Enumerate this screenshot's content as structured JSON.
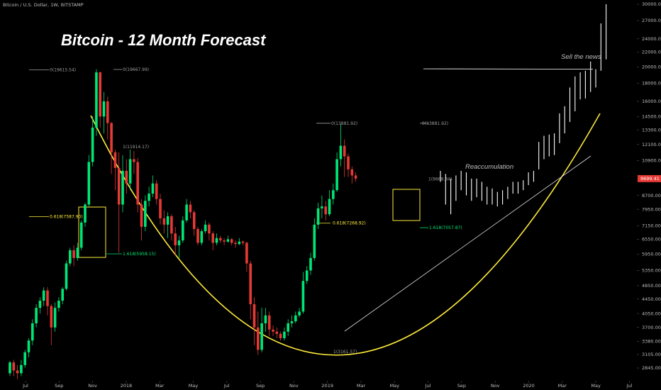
{
  "header": "Bitcoin / U.S. Dollar, 1W, BITSTAMP",
  "chart_data": {
    "type": "candlestick",
    "title": "Bitcoin - 12 Month Forecast",
    "subtitle": "Bitcoin / U.S. Dollar, 1W, BITSTAMP",
    "y_ticks": [
      "30000.00",
      "27000.00",
      "24000.00",
      "22000.00",
      "20000.00",
      "18000.00",
      "16000.00",
      "14500.00",
      "13300.00",
      "12100.00",
      "10900.00",
      "8700.00",
      "7950.00",
      "7150.00",
      "6550.00",
      "5950.00",
      "5350.00",
      "4850.00",
      "4450.00",
      "4050.00",
      "3700.00",
      "3380.00",
      "3105.00",
      "2845.00"
    ],
    "x_ticks": [
      "Jul",
      "Sep",
      "Nov",
      "2018",
      "Mar",
      "May",
      "Jul",
      "Sep",
      "Nov",
      "2019",
      "Mar",
      "May",
      "Jul",
      "Sep",
      "Nov",
      "2020",
      "Mar",
      "May",
      "Jul"
    ],
    "last_price": "9699.41",
    "last_price_color": "#e53935",
    "up_color": "#00e676",
    "down_color": "#e53935",
    "projection_color": "#ffffff",
    "curve_color": "#ffeb3b",
    "candles": [
      [
        2750,
        2950,
        2700,
        2980
      ],
      [
        2950,
        2800,
        2700,
        3000
      ],
      [
        2800,
        2750,
        2650,
        2900
      ],
      [
        2750,
        2900,
        2700,
        3000
      ],
      [
        2900,
        3150,
        2850,
        3200
      ],
      [
        3150,
        3400,
        3050,
        3450
      ],
      [
        3400,
        3800,
        3300,
        3900
      ],
      [
        3800,
        4200,
        3700,
        4300
      ],
      [
        4200,
        4400,
        4050,
        4500
      ],
      [
        4400,
        4700,
        4250,
        4800
      ],
      [
        4700,
        4250,
        4000,
        4800
      ],
      [
        4250,
        3700,
        3300,
        4300
      ],
      [
        3700,
        4200,
        3600,
        4350
      ],
      [
        4200,
        4400,
        4100,
        4500
      ],
      [
        4400,
        4750,
        4300,
        4800
      ],
      [
        4750,
        5600,
        4700,
        5700
      ],
      [
        5600,
        6100,
        5500,
        6200
      ],
      [
        6100,
        5800,
        5500,
        6300
      ],
      [
        5800,
        6200,
        5700,
        6400
      ],
      [
        6200,
        7300,
        6100,
        7400
      ],
      [
        7300,
        8200,
        7100,
        8300
      ],
      [
        8200,
        10800,
        8100,
        11300
      ],
      [
        10800,
        13500,
        10500,
        14500
      ],
      [
        13500,
        19300,
        12800,
        19700
      ],
      [
        19300,
        14500,
        13500,
        19400
      ],
      [
        14500,
        16000,
        13000,
        17000
      ],
      [
        16000,
        13900,
        12500,
        16500
      ],
      [
        13900,
        11500,
        10000,
        14000
      ],
      [
        11500,
        10400,
        9000,
        11700
      ],
      [
        10400,
        8200,
        6000,
        11500
      ],
      [
        8200,
        10200,
        7800,
        11300
      ],
      [
        10200,
        9400,
        8800,
        11000
      ],
      [
        9400,
        11000,
        9000,
        11700
      ],
      [
        11000,
        10800,
        10000,
        11600
      ],
      [
        10800,
        8200,
        7800,
        11100
      ],
      [
        8200,
        7100,
        6500,
        8500
      ],
      [
        7100,
        8400,
        6900,
        8700
      ],
      [
        8400,
        8800,
        8100,
        9200
      ],
      [
        8800,
        9400,
        8600,
        9900
      ],
      [
        9400,
        8500,
        8200,
        9600
      ],
      [
        8500,
        7500,
        7200,
        8800
      ],
      [
        7500,
        7200,
        6800,
        7900
      ],
      [
        7200,
        7600,
        6600,
        7800
      ],
      [
        7600,
        6800,
        6500,
        7700
      ],
      [
        6800,
        6300,
        5900,
        7100
      ],
      [
        6300,
        6500,
        5800,
        6700
      ],
      [
        6500,
        7400,
        6400,
        7600
      ],
      [
        7400,
        8200,
        7300,
        8500
      ],
      [
        8200,
        7800,
        7500,
        8400
      ],
      [
        7800,
        7000,
        6700,
        7900
      ],
      [
        7000,
        6400,
        6300,
        7100
      ],
      [
        6400,
        6900,
        6300,
        7000
      ],
      [
        6900,
        7200,
        6800,
        7400
      ],
      [
        7200,
        6800,
        6500,
        7300
      ],
      [
        6800,
        6400,
        6100,
        6900
      ],
      [
        6400,
        6600,
        6300,
        6800
      ],
      [
        6600,
        6500,
        6400,
        6700
      ],
      [
        6500,
        6450,
        6300,
        6600
      ],
      [
        6450,
        6550,
        6400,
        6700
      ],
      [
        6550,
        6400,
        6300,
        6600
      ],
      [
        6400,
        6350,
        6200,
        6500
      ],
      [
        6350,
        6450,
        6300,
        6600
      ],
      [
        6450,
        6400,
        6300,
        6500
      ],
      [
        6400,
        5600,
        5300,
        6450
      ],
      [
        5600,
        4300,
        3900,
        5700
      ],
      [
        4300,
        3700,
        3300,
        4500
      ],
      [
        3700,
        3200,
        3100,
        4100
      ],
      [
        3200,
        3800,
        3150,
        4200
      ],
      [
        3800,
        4000,
        3600,
        4200
      ],
      [
        4000,
        3650,
        3500,
        4100
      ],
      [
        3650,
        3600,
        3500,
        3750
      ],
      [
        3600,
        3550,
        3450,
        3700
      ],
      [
        3550,
        3450,
        3400,
        3600
      ],
      [
        3450,
        3600,
        3400,
        3700
      ],
      [
        3600,
        3800,
        3500,
        3900
      ],
      [
        3800,
        3850,
        3700,
        4000
      ],
      [
        3850,
        4000,
        3800,
        4100
      ],
      [
        4000,
        4100,
        3950,
        4200
      ],
      [
        4100,
        5000,
        4050,
        5300
      ],
      [
        5000,
        5350,
        4900,
        5500
      ],
      [
        5350,
        5800,
        5200,
        6000
      ],
      [
        5800,
        7200,
        5700,
        7500
      ],
      [
        7200,
        8000,
        7000,
        8300
      ],
      [
        8000,
        8100,
        7500,
        8700
      ],
      [
        8100,
        7700,
        7400,
        8400
      ],
      [
        7700,
        8500,
        7600,
        9000
      ],
      [
        8500,
        9000,
        8200,
        9400
      ],
      [
        9000,
        11000,
        8900,
        11500
      ],
      [
        11000,
        12000,
        10500,
        13800
      ],
      [
        12000,
        11200,
        9800,
        12500
      ],
      [
        11200,
        10300,
        9800,
        11400
      ],
      [
        10300,
        9900,
        9400,
        10500
      ],
      [
        9900,
        9699,
        9500,
        10100
      ]
    ],
    "projection": [
      [
        9500,
        10200
      ],
      [
        8200,
        10000
      ],
      [
        7700,
        9700
      ],
      [
        8400,
        9900
      ],
      [
        9000,
        10200
      ],
      [
        8700,
        10100
      ],
      [
        8400,
        9700
      ],
      [
        8600,
        9700
      ],
      [
        8400,
        9500
      ],
      [
        8200,
        9200
      ],
      [
        8200,
        9100
      ],
      [
        8100,
        8900
      ],
      [
        8200,
        9000
      ],
      [
        8500,
        9200
      ],
      [
        8800,
        9500
      ],
      [
        8800,
        9500
      ],
      [
        9000,
        9600
      ],
      [
        9300,
        10100
      ],
      [
        9500,
        10200
      ],
      [
        10300,
        12300
      ],
      [
        11000,
        12800
      ],
      [
        11200,
        12900
      ],
      [
        11300,
        13000
      ],
      [
        12200,
        14800
      ],
      [
        13000,
        15500
      ],
      [
        14000,
        17500
      ],
      [
        15000,
        18800
      ],
      [
        16200,
        19300
      ],
      [
        16300,
        19500
      ],
      [
        17000,
        20700
      ],
      [
        17500,
        19700
      ],
      [
        19500,
        26500
      ],
      [
        21000,
        30000
      ]
    ],
    "annotations": {
      "fib_a_0": "0(19615.54)",
      "fib_b_0": "0(19667.99)",
      "fib_b_1": "1(11914.17)",
      "fib_a_0618": "0.618(7587.90)",
      "fib_b_1618": "1.618(5958.15)",
      "fib_c_0": "0(13881.92)",
      "fib_d_0": "0(13881.92)",
      "fib_d_1": "1(9668.34)",
      "fib_c_0618": "0.618(7268.92)",
      "fib_d_1618": "1.618(7057.87)",
      "fib_c_1": "1(3161.57)",
      "sell_the_news": "Sell the news",
      "reaccumulation": "Reaccumulation"
    }
  }
}
